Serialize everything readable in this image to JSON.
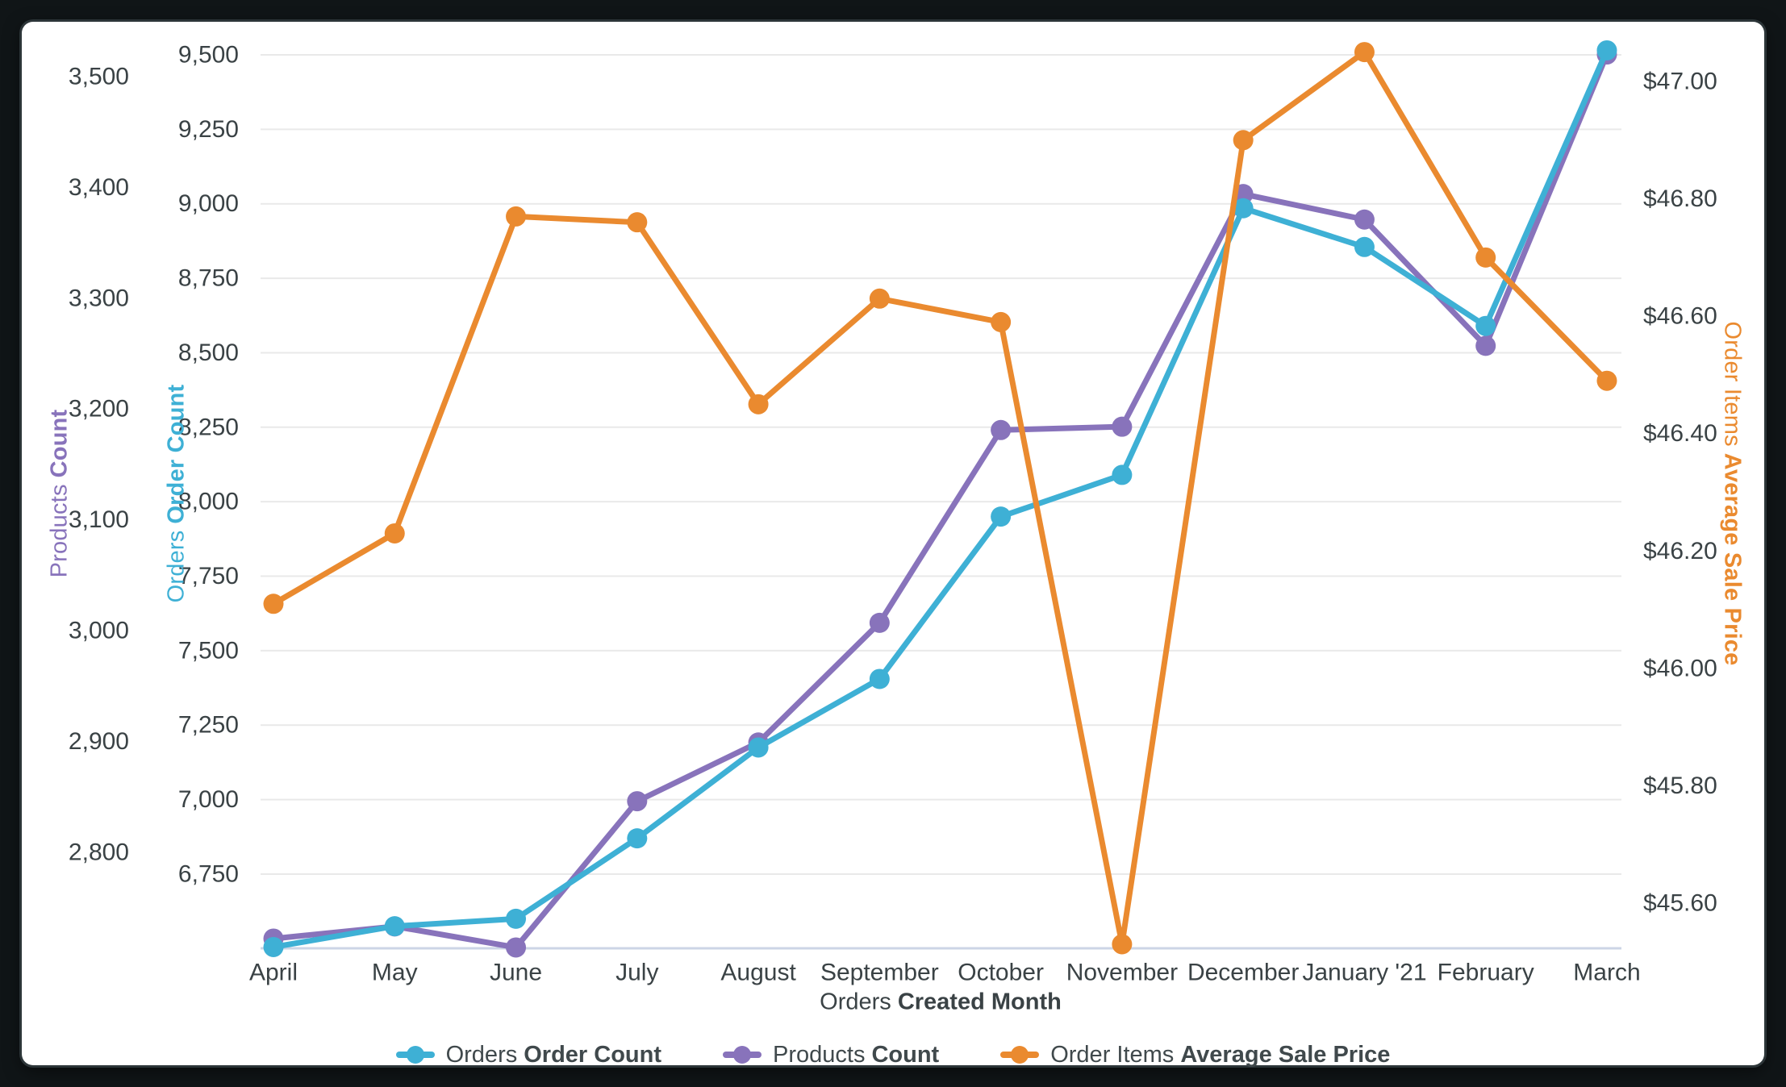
{
  "frame": {
    "background": "#101517",
    "card_background": "#ffffff"
  },
  "colors": {
    "orders_order_count": "#3eb0d5",
    "products_count": "#8873bb",
    "order_items_average_sale_price": "#ea8a2f",
    "tick_text": "#3a4245",
    "gridline": "#e9e9e9",
    "axis_baseline": "#ccd5e6"
  },
  "chart_data": {
    "type": "line",
    "x_axis": {
      "label_view": "Orders",
      "label_field": "Created Month",
      "categories": [
        "April",
        "May",
        "June",
        "July",
        "August",
        "September",
        "October",
        "November",
        "December",
        "January '21",
        "February",
        "March"
      ]
    },
    "y_axes": {
      "products": {
        "label_view": "Products",
        "label_field": "Count",
        "color": "#8873bb",
        "ticks": [
          {
            "label": "3,500",
            "value": 3500
          },
          {
            "label": "3,400",
            "value": 3400
          },
          {
            "label": "3,300",
            "value": 3300
          },
          {
            "label": "3,200",
            "value": 3200
          },
          {
            "label": "3,100",
            "value": 3100
          },
          {
            "label": "3,000",
            "value": 3000
          },
          {
            "label": "2,900",
            "value": 2900
          },
          {
            "label": "2,800",
            "value": 2800
          }
        ]
      },
      "orders": {
        "label_view": "Orders",
        "label_field": "Order Count",
        "color": "#3eb0d5",
        "ticks": [
          {
            "label": "9,500",
            "value": 9500
          },
          {
            "label": "9,250",
            "value": 9250
          },
          {
            "label": "9,000",
            "value": 9000
          },
          {
            "label": "8,750",
            "value": 8750
          },
          {
            "label": "8,500",
            "value": 8500
          },
          {
            "label": "8,250",
            "value": 8250
          },
          {
            "label": "8,000",
            "value": 8000
          },
          {
            "label": "7,750",
            "value": 7750
          },
          {
            "label": "7,500",
            "value": 7500
          },
          {
            "label": "7,250",
            "value": 7250
          },
          {
            "label": "7,000",
            "value": 7000
          },
          {
            "label": "6,750",
            "value": 6750
          }
        ]
      },
      "price": {
        "label_view": "Order Items",
        "label_field": "Average Sale Price",
        "color": "#ea8a2f",
        "ticks": [
          {
            "label": "$47.00",
            "value": 47.0
          },
          {
            "label": "$46.80",
            "value": 46.8
          },
          {
            "label": "$46.60",
            "value": 46.6
          },
          {
            "label": "$46.40",
            "value": 46.4
          },
          {
            "label": "$46.20",
            "value": 46.2
          },
          {
            "label": "$46.00",
            "value": 46.0
          },
          {
            "label": "$45.80",
            "value": 45.8
          },
          {
            "label": "$45.60",
            "value": 45.6
          }
        ]
      }
    },
    "series": [
      {
        "id": "orders-order-count",
        "legend_view": "Orders",
        "legend_field": "Order Count",
        "axis": "orders",
        "color": "#3eb0d5",
        "draw_order": 2,
        "values": [
          6505,
          6575,
          6600,
          6870,
          7175,
          7405,
          7950,
          8090,
          8985,
          8855,
          8590,
          9515
        ]
      },
      {
        "id": "products-count",
        "legend_view": "Products",
        "legend_field": "Count",
        "axis": "products",
        "color": "#8873bb",
        "draw_order": 1,
        "values": [
          2722,
          2733,
          2714,
          2846,
          2899,
          3007,
          3181,
          3184,
          3394,
          3371,
          3257,
          3520
        ]
      },
      {
        "id": "order-items-average-sale-price",
        "legend_view": "Order Items",
        "legend_field": "Average Sale Price",
        "axis": "price",
        "color": "#ea8a2f",
        "draw_order": 3,
        "values": [
          46.11,
          46.23,
          46.77,
          46.76,
          46.45,
          46.63,
          46.59,
          45.53,
          46.9,
          47.05,
          46.7,
          46.49
        ]
      }
    ]
  }
}
